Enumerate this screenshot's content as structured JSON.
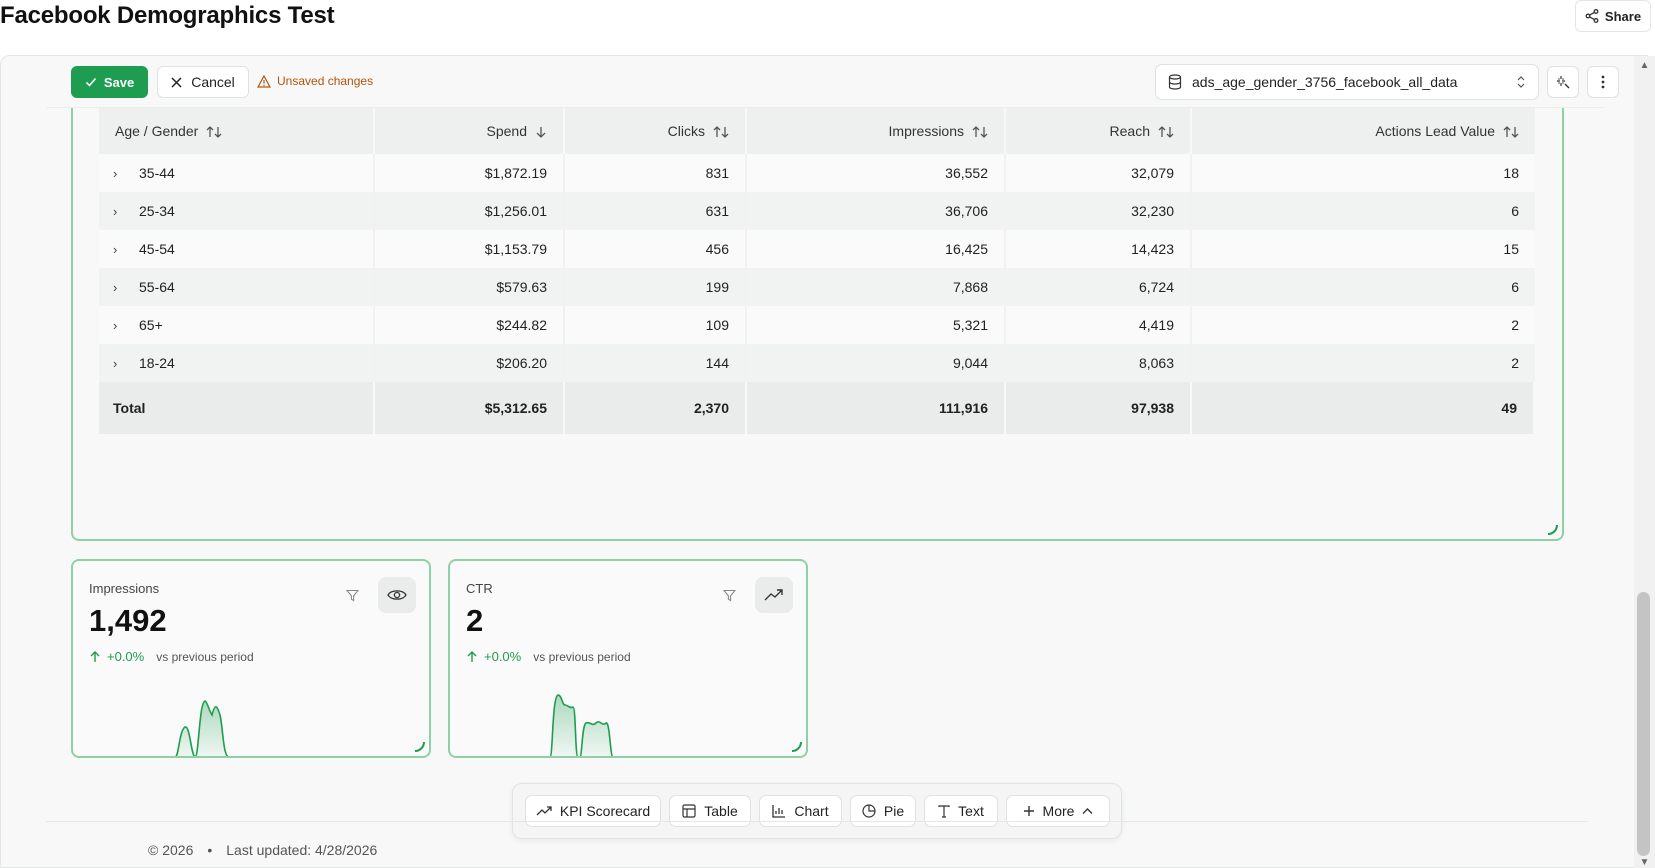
{
  "header": {
    "title": "Facebook Demographics Test",
    "share_label": "Share"
  },
  "toolbar": {
    "save_label": "Save",
    "cancel_label": "Cancel",
    "unsaved_label": "Unsaved changes",
    "datasource": "ads_age_gender_3756_facebook_all_data"
  },
  "table": {
    "columns": [
      "Age / Gender",
      "Spend",
      "Clicks",
      "Impressions",
      "Reach",
      "Actions Lead Value"
    ],
    "rows": [
      [
        "35-44",
        "$1,872.19",
        "831",
        "36,552",
        "32,079",
        "18"
      ],
      [
        "25-34",
        "$1,256.01",
        "631",
        "36,706",
        "32,230",
        "6"
      ],
      [
        "45-54",
        "$1,153.79",
        "456",
        "16,425",
        "14,423",
        "15"
      ],
      [
        "55-64",
        "$579.63",
        "199",
        "7,868",
        "6,724",
        "6"
      ],
      [
        "65+",
        "$244.82",
        "109",
        "5,321",
        "4,419",
        "2"
      ],
      [
        "18-24",
        "$206.20",
        "144",
        "9,044",
        "8,063",
        "2"
      ]
    ],
    "total": [
      "Total",
      "$5,312.65",
      "2,370",
      "111,916",
      "97,938",
      "49"
    ]
  },
  "kpis": [
    {
      "label": "Impressions",
      "value": "1,492",
      "delta": "+0.0%",
      "vs": "vs previous period",
      "icon": "eye-icon"
    },
    {
      "label": "CTR",
      "value": "2",
      "delta": "+0.0%",
      "vs": "vs previous period",
      "icon": "trending-up-icon"
    }
  ],
  "addbar": {
    "kpi": "KPI Scorecard",
    "table": "Table",
    "chart": "Chart",
    "pie": "Pie",
    "text": "Text",
    "more": "More"
  },
  "footer": {
    "copyright": "© 2026",
    "separator": "•",
    "updated": "Last updated: 4/28/2026"
  },
  "colors": {
    "accent": "#1e9c4f",
    "widget_border": "#8fd1a6",
    "warning": "#b45309"
  }
}
